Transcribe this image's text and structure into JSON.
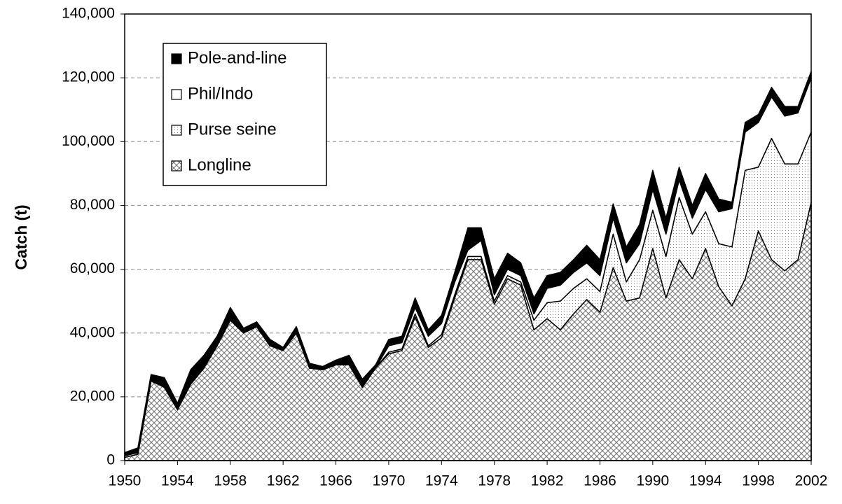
{
  "chart_data": {
    "type": "stacked_area",
    "y_label": "Catch (t)",
    "x": [
      1950,
      1951,
      1952,
      1953,
      1954,
      1955,
      1956,
      1957,
      1958,
      1959,
      1960,
      1961,
      1962,
      1963,
      1964,
      1965,
      1966,
      1967,
      1968,
      1969,
      1970,
      1971,
      1972,
      1973,
      1974,
      1975,
      1976,
      1977,
      1978,
      1979,
      1980,
      1981,
      1982,
      1983,
      1984,
      1985,
      1986,
      1987,
      1988,
      1989,
      1990,
      1991,
      1992,
      1993,
      1994,
      1995,
      1996,
      1997,
      1998,
      1999,
      2000,
      2001,
      2002
    ],
    "xlim": [
      1950,
      2002
    ],
    "xticks": [
      1950,
      1954,
      1958,
      1962,
      1966,
      1970,
      1974,
      1978,
      1982,
      1986,
      1990,
      1994,
      1998,
      2002
    ],
    "ylim": [
      0,
      140000
    ],
    "yticks": [
      0,
      {
        "value": 20000,
        "label": "20,000"
      },
      {
        "value": 40000,
        "label": "40,000"
      },
      {
        "value": 60000,
        "label": "60,000"
      },
      {
        "value": 80000,
        "label": "80,000"
      },
      {
        "value": 100000,
        "label": "100,000"
      },
      {
        "value": 120000,
        "label": "120,000"
      },
      {
        "value": 140000,
        "label": "140,000"
      }
    ],
    "grid": true,
    "legend": "upper left",
    "series": [
      {
        "name": "Longline",
        "color": "#808080",
        "pattern": "crosshatch",
        "values": [
          1000,
          2000,
          25000,
          23000,
          16000,
          24000,
          29000,
          36000,
          44000,
          40000,
          42000,
          36000,
          34500,
          40000,
          29000,
          28500,
          30000,
          30000,
          23000,
          29000,
          33500,
          34500,
          45000,
          35500,
          38500,
          51000,
          63000,
          63000,
          49000,
          57000,
          55000,
          41000,
          44500,
          41000,
          46000,
          50500,
          46500,
          60500,
          50000,
          51000,
          66500,
          51000,
          63000,
          57000,
          66500,
          54500,
          48500,
          57000,
          72000,
          63000,
          59500,
          63000,
          81000
        ]
      },
      {
        "name": "Purse seine",
        "color": "#909090",
        "pattern": "dots",
        "values": [
          0,
          0,
          0,
          0,
          0,
          0,
          0,
          0,
          0,
          0,
          0,
          0,
          0,
          0,
          0,
          0,
          0,
          0,
          0,
          0,
          500,
          500,
          1000,
          500,
          1000,
          1000,
          1000,
          1000,
          1000,
          1000,
          1000,
          3000,
          5000,
          9000,
          8000,
          6500,
          6500,
          10500,
          6000,
          12000,
          12000,
          13000,
          19500,
          14000,
          11500,
          13500,
          18500,
          34000,
          20000,
          38000,
          33500,
          30000,
          22000
        ]
      },
      {
        "name": "Phil/Indo",
        "color": "#ffffff",
        "pattern": "none",
        "values": [
          500,
          500,
          0,
          0,
          0,
          0,
          0,
          0,
          0,
          0,
          0,
          0,
          0,
          0,
          0,
          0,
          0,
          0,
          0,
          0,
          2000,
          2000,
          2000,
          3000,
          3500,
          4000,
          2000,
          5000,
          2000,
          2000,
          2000,
          2000,
          4500,
          5000,
          5000,
          5000,
          5000,
          5000,
          6000,
          5000,
          6500,
          7000,
          5500,
          5000,
          7000,
          10000,
          12000,
          12000,
          14000,
          13000,
          15000,
          16000,
          17000
        ]
      },
      {
        "name": "Pole-and-line",
        "color": "#000000",
        "pattern": "none",
        "values": [
          1000,
          1500,
          2000,
          3000,
          2000,
          4500,
          4000,
          3000,
          4000,
          1500,
          1500,
          2000,
          1000,
          2000,
          1500,
          1000,
          1500,
          3000,
          2500,
          1000,
          2000,
          2000,
          3000,
          2000,
          2500,
          3000,
          7000,
          4000,
          5000,
          5000,
          4000,
          5000,
          4000,
          4000,
          4000,
          5500,
          5000,
          4500,
          5000,
          6000,
          6000,
          5000,
          4000,
          4000,
          5000,
          4000,
          2000,
          3000,
          2500,
          3000,
          3000,
          2000,
          2000
        ]
      }
    ]
  }
}
